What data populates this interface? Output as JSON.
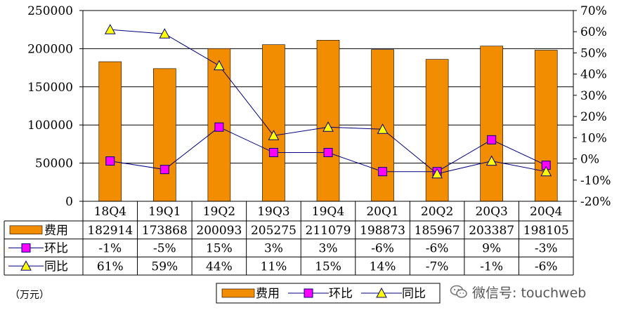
{
  "chart_data": {
    "type": "bar",
    "categories": [
      "18Q4",
      "19Q1",
      "19Q2",
      "19Q3",
      "19Q4",
      "20Q1",
      "20Q2",
      "20Q3",
      "20Q4"
    ],
    "series": [
      {
        "name": "费用",
        "axis": "left",
        "type": "bar",
        "color": "#F28C00",
        "values": [
          182914,
          173868,
          200093,
          205275,
          211079,
          198873,
          185967,
          203387,
          198105
        ]
      },
      {
        "name": "环比",
        "axis": "right",
        "type": "line",
        "color": "#FF00FF",
        "marker": "square",
        "values": [
          -1,
          -5,
          15,
          3,
          3,
          -6,
          -6,
          9,
          -3
        ]
      },
      {
        "name": "同比",
        "axis": "right",
        "type": "line",
        "color": "#FFFF00",
        "marker": "triangle",
        "values": [
          61,
          59,
          44,
          11,
          15,
          14,
          -7,
          -1,
          -6
        ]
      }
    ],
    "table_rows": [
      {
        "label": "费用",
        "cells": [
          "182914",
          "173868",
          "200093",
          "205275",
          "211079",
          "198873",
          "185967",
          "203387",
          "198105"
        ]
      },
      {
        "label": "环比",
        "cells": [
          "-1%",
          "-5%",
          "15%",
          "3%",
          "3%",
          "-6%",
          "-6%",
          "9%",
          "-3%"
        ]
      },
      {
        "label": "同比",
        "cells": [
          "61%",
          "59%",
          "44%",
          "11%",
          "15%",
          "14%",
          "-7%",
          "-1%",
          "-6%"
        ]
      }
    ],
    "y_left": {
      "ylim": [
        0,
        250000
      ],
      "ticks": [
        "0",
        "50000",
        "100000",
        "150000",
        "200000",
        "250000"
      ],
      "tick_values": [
        0,
        50000,
        100000,
        150000,
        200000,
        250000
      ]
    },
    "y_right": {
      "ylim": [
        -20,
        70
      ],
      "ticks": [
        "-20%",
        "-10%",
        "0%",
        "10%",
        "20%",
        "30%",
        "40%",
        "50%",
        "60%",
        "70%"
      ],
      "tick_values": [
        -20,
        -10,
        0,
        10,
        20,
        30,
        40,
        50,
        60,
        70
      ]
    },
    "unit_label": "（万元）",
    "legend": [
      "费用",
      "环比",
      "同比"
    ],
    "grid": true
  },
  "watermark": {
    "text": "微信号: touchweb",
    "icon": "wechat-icon"
  }
}
